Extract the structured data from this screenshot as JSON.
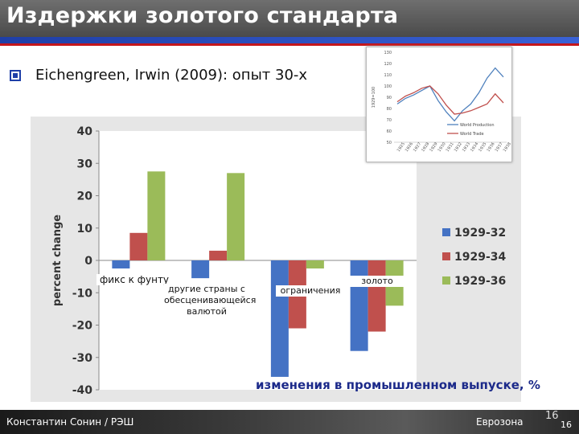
{
  "slide": {
    "title": "Издержки золотого стандарта",
    "bullet": "Eichengreen, Irwin (2009): опыт 30-х",
    "caption": "изменения в промышленном выпуске, %",
    "footer_author": "Константин Сонин / РЭШ",
    "footer_section": "Еврозона",
    "page_number_large": "16",
    "page_number_small": "16"
  },
  "colors": {
    "series_1929_32": "#4472c4",
    "series_1929_34": "#c0504d",
    "series_1929_36": "#9bbb59",
    "inset_blue": "#4f81bd",
    "inset_red": "#c0504d"
  },
  "chart_data": [
    {
      "type": "bar",
      "ylabel": "percent change",
      "ylim": [
        -40,
        40
      ],
      "yticks": [
        40,
        30,
        20,
        10,
        0,
        -10,
        -20,
        -30,
        -40
      ],
      "grid": false,
      "legend_position": "right",
      "categories": [
        "фикс к фунту",
        "другие страны с обесценивающейся валютой",
        "ограничения",
        "золото"
      ],
      "series": [
        {
          "name": "1929-32",
          "values": [
            -2.5,
            -5.5,
            -36,
            -28
          ]
        },
        {
          "name": "1929-34",
          "values": [
            8.5,
            3,
            -21,
            -22
          ]
        },
        {
          "name": "1929-36",
          "values": [
            27.5,
            27,
            -2.5,
            -14
          ]
        }
      ]
    },
    {
      "type": "line",
      "ylim": [
        50,
        130
      ],
      "yticks": [
        130,
        120,
        110,
        100,
        90,
        80,
        70,
        60,
        50
      ],
      "ylabel": "1929=100",
      "x": [
        "1925",
        "1926",
        "1927",
        "1928",
        "1929",
        "1930",
        "1931",
        "1932",
        "1933",
        "1934",
        "1935",
        "1936",
        "1937",
        "1938"
      ],
      "series": [
        {
          "name": "World Production",
          "values": [
            84,
            89,
            92,
            96,
            100,
            87,
            77,
            69,
            78,
            84,
            94,
            107,
            116,
            108
          ]
        },
        {
          "name": "World Trade",
          "values": [
            86,
            91,
            94,
            98,
            100,
            93,
            83,
            75,
            76,
            78,
            81,
            84,
            93,
            85
          ]
        }
      ]
    }
  ]
}
